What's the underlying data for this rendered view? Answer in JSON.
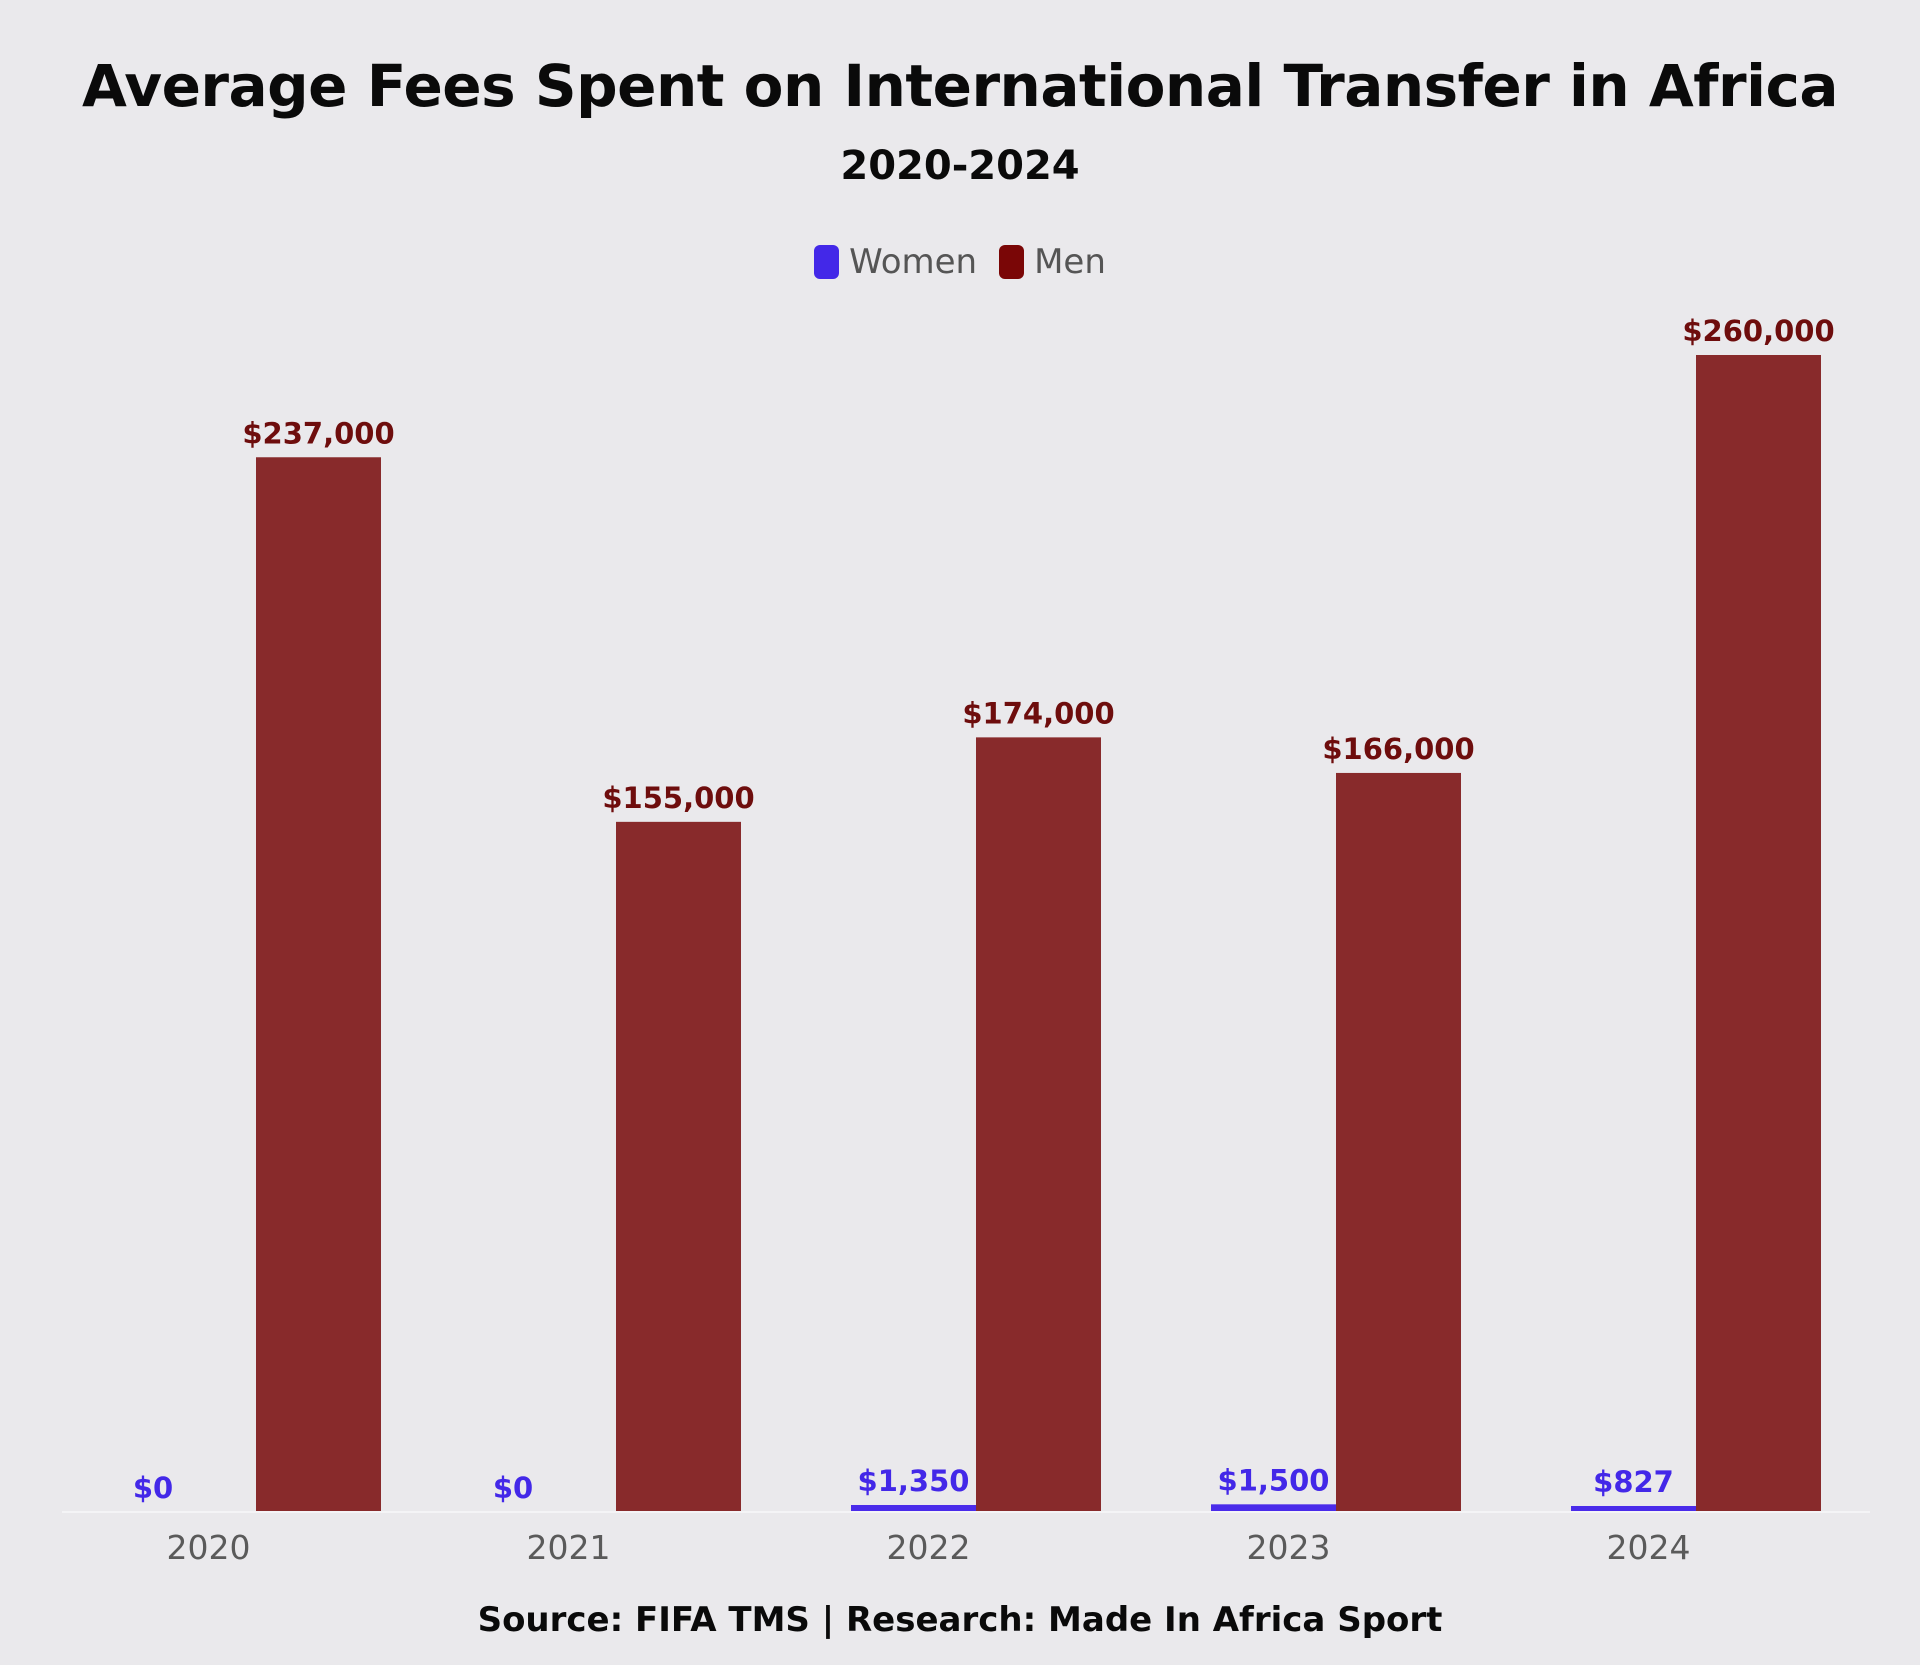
{
  "chart_data": {
    "type": "bar",
    "title": "Average Fees Spent on International Transfer in Africa",
    "subtitle": "2020-2024",
    "categories": [
      "2020",
      "2021",
      "2022",
      "2023",
      "2024"
    ],
    "series": [
      {
        "name": "Women",
        "color": "#4a2bea",
        "values": [
          0,
          0,
          1350,
          1500,
          827
        ],
        "labels": [
          "$0",
          "$0",
          "$1,350",
          "$1,500",
          "$827"
        ]
      },
      {
        "name": "Men",
        "color": "#882a2b",
        "values": [
          237000,
          155000,
          174000,
          166000,
          260000
        ],
        "labels": [
          "$237,000",
          "$155,000",
          "$174,000",
          "$166,000",
          "$260,000"
        ]
      }
    ],
    "legend_colors": [
      "#4328e8",
      "#7a0606"
    ],
    "label_colors": [
      "#4328e8",
      "#6e0d0d"
    ],
    "ylim": [
      0,
      260000
    ],
    "grid": false,
    "legend_position": "top-center"
  },
  "footer": {
    "source": "Source: FIFA TMS | Research: Made In Africa Sport"
  }
}
